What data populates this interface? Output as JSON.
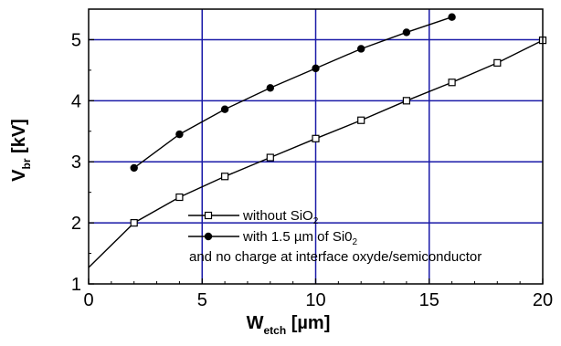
{
  "chart_data": {
    "type": "line",
    "xlabel": {
      "main": "W",
      "sub": "etch",
      "unit": " [µm]"
    },
    "ylabel": {
      "main": "V",
      "sub": "br",
      "unit": " [kV]"
    },
    "xlim": [
      0,
      20
    ],
    "ylim": [
      1,
      5.5
    ],
    "x_ticks": [
      0,
      5,
      10,
      15,
      20
    ],
    "y_ticks": [
      1,
      2,
      3,
      4,
      5
    ],
    "grid": true,
    "grid_color": "#1a1aa8",
    "legend_position": "lower-right",
    "series": [
      {
        "legend_main": "without SiO",
        "legend_sub": "2",
        "marker": "open-square",
        "color": "#000000",
        "points": [
          [
            0,
            1.27
          ],
          [
            2,
            2.0
          ],
          [
            4,
            2.42
          ],
          [
            6,
            2.76
          ],
          [
            8,
            3.07
          ],
          [
            10,
            3.38
          ],
          [
            12,
            3.68
          ],
          [
            14,
            4.0
          ],
          [
            16,
            4.3
          ],
          [
            18,
            4.62
          ],
          [
            20,
            4.99
          ]
        ]
      },
      {
        "legend_main": "with 1.5 µm of Si0",
        "legend_sub": "2",
        "marker": "filled-circle",
        "color": "#000000",
        "points": [
          [
            2,
            2.9
          ],
          [
            4,
            3.45
          ],
          [
            6,
            3.86
          ],
          [
            8,
            4.21
          ],
          [
            10,
            4.53
          ],
          [
            12,
            4.85
          ],
          [
            14,
            5.12
          ],
          [
            16,
            5.37
          ]
        ]
      }
    ],
    "annotation": "and no charge at interface oxyde/semiconductor"
  }
}
